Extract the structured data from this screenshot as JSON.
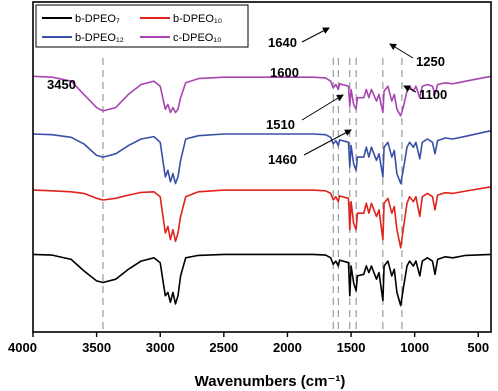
{
  "chart_data": {
    "type": "line",
    "title": "",
    "xlabel": "Wavenumbers (cm⁻¹)",
    "ylabel": "",
    "xlim": [
      4000,
      400
    ],
    "x_reversed": true,
    "ylim": [
      0,
      1
    ],
    "grid": false,
    "legend_position": "top-left",
    "x_ticks": [
      4000,
      3500,
      3000,
      2500,
      2000,
      1500,
      1000,
      500
    ],
    "vlines": [
      3450,
      1640,
      1600,
      1510,
      1460,
      1250,
      1100
    ],
    "annotations": [
      {
        "label": "3450",
        "x": 3450
      },
      {
        "label": "1640",
        "x": 1640
      },
      {
        "label": "1600",
        "x": 1600
      },
      {
        "label": "1510",
        "x": 1510
      },
      {
        "label": "1460",
        "x": 1460
      },
      {
        "label": "1250",
        "x": 1250
      },
      {
        "label": "1100",
        "x": 1100
      }
    ],
    "series": [
      {
        "name": "b-DPEO₇",
        "color": "#000000",
        "points": [
          [
            4000,
            0.235
          ],
          [
            3850,
            0.233
          ],
          [
            3700,
            0.22
          ],
          [
            3600,
            0.185
          ],
          [
            3500,
            0.155
          ],
          [
            3450,
            0.15
          ],
          [
            3350,
            0.16
          ],
          [
            3250,
            0.19
          ],
          [
            3150,
            0.215
          ],
          [
            3050,
            0.225
          ],
          [
            3000,
            0.21
          ],
          [
            2960,
            0.11
          ],
          [
            2940,
            0.12
          ],
          [
            2920,
            0.09
          ],
          [
            2900,
            0.12
          ],
          [
            2880,
            0.085
          ],
          [
            2860,
            0.11
          ],
          [
            2840,
            0.17
          ],
          [
            2800,
            0.225
          ],
          [
            2700,
            0.232
          ],
          [
            2500,
            0.235
          ],
          [
            2000,
            0.235
          ],
          [
            1800,
            0.235
          ],
          [
            1700,
            0.233
          ],
          [
            1660,
            0.225
          ],
          [
            1640,
            0.205
          ],
          [
            1620,
            0.215
          ],
          [
            1600,
            0.2
          ],
          [
            1590,
            0.218
          ],
          [
            1520,
            0.21
          ],
          [
            1510,
            0.11
          ],
          [
            1500,
            0.2
          ],
          [
            1480,
            0.15
          ],
          [
            1460,
            0.125
          ],
          [
            1450,
            0.17
          ],
          [
            1400,
            0.175
          ],
          [
            1380,
            0.2
          ],
          [
            1360,
            0.18
          ],
          [
            1340,
            0.2
          ],
          [
            1300,
            0.16
          ],
          [
            1280,
            0.18
          ],
          [
            1250,
            0.095
          ],
          [
            1240,
            0.2
          ],
          [
            1210,
            0.215
          ],
          [
            1180,
            0.17
          ],
          [
            1160,
            0.19
          ],
          [
            1140,
            0.12
          ],
          [
            1110,
            0.08
          ],
          [
            1090,
            0.13
          ],
          [
            1060,
            0.2
          ],
          [
            1040,
            0.215
          ],
          [
            1010,
            0.2
          ],
          [
            990,
            0.215
          ],
          [
            960,
            0.17
          ],
          [
            940,
            0.215
          ],
          [
            900,
            0.225
          ],
          [
            860,
            0.215
          ],
          [
            840,
            0.175
          ],
          [
            820,
            0.22
          ],
          [
            760,
            0.228
          ],
          [
            700,
            0.225
          ],
          [
            600,
            0.232
          ],
          [
            400,
            0.235
          ]
        ]
      },
      {
        "name": "b-DPEO₁₀",
        "color": "#e0231c",
        "points": [
          [
            4000,
            0.43
          ],
          [
            3850,
            0.428
          ],
          [
            3700,
            0.425
          ],
          [
            3600,
            0.42
          ],
          [
            3500,
            0.405
          ],
          [
            3450,
            0.4
          ],
          [
            3350,
            0.405
          ],
          [
            3250,
            0.415
          ],
          [
            3150,
            0.423
          ],
          [
            3050,
            0.425
          ],
          [
            3000,
            0.41
          ],
          [
            2960,
            0.3
          ],
          [
            2940,
            0.32
          ],
          [
            2920,
            0.28
          ],
          [
            2900,
            0.31
          ],
          [
            2880,
            0.275
          ],
          [
            2860,
            0.3
          ],
          [
            2840,
            0.35
          ],
          [
            2800,
            0.41
          ],
          [
            2700,
            0.425
          ],
          [
            2500,
            0.43
          ],
          [
            2000,
            0.43
          ],
          [
            1800,
            0.43
          ],
          [
            1700,
            0.428
          ],
          [
            1660,
            0.42
          ],
          [
            1640,
            0.4
          ],
          [
            1620,
            0.41
          ],
          [
            1600,
            0.395
          ],
          [
            1590,
            0.412
          ],
          [
            1520,
            0.405
          ],
          [
            1510,
            0.31
          ],
          [
            1500,
            0.395
          ],
          [
            1480,
            0.33
          ],
          [
            1460,
            0.31
          ],
          [
            1450,
            0.36
          ],
          [
            1400,
            0.36
          ],
          [
            1380,
            0.39
          ],
          [
            1360,
            0.36
          ],
          [
            1340,
            0.39
          ],
          [
            1300,
            0.35
          ],
          [
            1280,
            0.37
          ],
          [
            1250,
            0.28
          ],
          [
            1240,
            0.39
          ],
          [
            1210,
            0.405
          ],
          [
            1180,
            0.36
          ],
          [
            1160,
            0.38
          ],
          [
            1140,
            0.31
          ],
          [
            1110,
            0.255
          ],
          [
            1090,
            0.31
          ],
          [
            1060,
            0.39
          ],
          [
            1040,
            0.41
          ],
          [
            1010,
            0.395
          ],
          [
            990,
            0.41
          ],
          [
            960,
            0.35
          ],
          [
            940,
            0.41
          ],
          [
            900,
            0.42
          ],
          [
            860,
            0.41
          ],
          [
            840,
            0.37
          ],
          [
            820,
            0.415
          ],
          [
            760,
            0.422
          ],
          [
            700,
            0.42
          ],
          [
            600,
            0.427
          ],
          [
            400,
            0.44
          ]
        ]
      },
      {
        "name": "b-DPEO₁₂",
        "color": "#3a50a8",
        "points": [
          [
            4000,
            0.6
          ],
          [
            3850,
            0.598
          ],
          [
            3700,
            0.59
          ],
          [
            3600,
            0.57
          ],
          [
            3500,
            0.535
          ],
          [
            3450,
            0.53
          ],
          [
            3350,
            0.54
          ],
          [
            3250,
            0.565
          ],
          [
            3150,
            0.585
          ],
          [
            3050,
            0.592
          ],
          [
            3000,
            0.575
          ],
          [
            2960,
            0.47
          ],
          [
            2940,
            0.49
          ],
          [
            2920,
            0.455
          ],
          [
            2900,
            0.48
          ],
          [
            2880,
            0.45
          ],
          [
            2860,
            0.47
          ],
          [
            2840,
            0.52
          ],
          [
            2800,
            0.585
          ],
          [
            2700,
            0.595
          ],
          [
            2500,
            0.6
          ],
          [
            2000,
            0.6
          ],
          [
            1800,
            0.6
          ],
          [
            1700,
            0.598
          ],
          [
            1660,
            0.59
          ],
          [
            1640,
            0.57
          ],
          [
            1620,
            0.58
          ],
          [
            1600,
            0.565
          ],
          [
            1590,
            0.582
          ],
          [
            1520,
            0.575
          ],
          [
            1510,
            0.5
          ],
          [
            1500,
            0.565
          ],
          [
            1480,
            0.51
          ],
          [
            1460,
            0.49
          ],
          [
            1450,
            0.53
          ],
          [
            1400,
            0.53
          ],
          [
            1380,
            0.56
          ],
          [
            1360,
            0.53
          ],
          [
            1340,
            0.56
          ],
          [
            1300,
            0.52
          ],
          [
            1280,
            0.54
          ],
          [
            1250,
            0.47
          ],
          [
            1240,
            0.56
          ],
          [
            1210,
            0.575
          ],
          [
            1180,
            0.53
          ],
          [
            1160,
            0.55
          ],
          [
            1140,
            0.48
          ],
          [
            1110,
            0.45
          ],
          [
            1090,
            0.49
          ],
          [
            1060,
            0.56
          ],
          [
            1040,
            0.575
          ],
          [
            1010,
            0.56
          ],
          [
            990,
            0.575
          ],
          [
            960,
            0.525
          ],
          [
            940,
            0.575
          ],
          [
            900,
            0.585
          ],
          [
            860,
            0.575
          ],
          [
            840,
            0.54
          ],
          [
            820,
            0.58
          ],
          [
            760,
            0.588
          ],
          [
            700,
            0.585
          ],
          [
            600,
            0.593
          ],
          [
            400,
            0.61
          ]
        ]
      },
      {
        "name": "c-DPEO₁₀",
        "color": "#a845b0",
        "points": [
          [
            4000,
            0.775
          ],
          [
            3850,
            0.772
          ],
          [
            3700,
            0.76
          ],
          [
            3600,
            0.72
          ],
          [
            3500,
            0.68
          ],
          [
            3450,
            0.67
          ],
          [
            3350,
            0.68
          ],
          [
            3250,
            0.72
          ],
          [
            3150,
            0.75
          ],
          [
            3050,
            0.76
          ],
          [
            3000,
            0.745
          ],
          [
            2960,
            0.675
          ],
          [
            2940,
            0.69
          ],
          [
            2920,
            0.665
          ],
          [
            2900,
            0.68
          ],
          [
            2880,
            0.665
          ],
          [
            2860,
            0.675
          ],
          [
            2840,
            0.71
          ],
          [
            2800,
            0.755
          ],
          [
            2700,
            0.768
          ],
          [
            2500,
            0.772
          ],
          [
            2000,
            0.772
          ],
          [
            1800,
            0.772
          ],
          [
            1700,
            0.77
          ],
          [
            1660,
            0.76
          ],
          [
            1640,
            0.74
          ],
          [
            1620,
            0.75
          ],
          [
            1600,
            0.735
          ],
          [
            1590,
            0.752
          ],
          [
            1520,
            0.745
          ],
          [
            1510,
            0.685
          ],
          [
            1500,
            0.735
          ],
          [
            1480,
            0.69
          ],
          [
            1460,
            0.675
          ],
          [
            1450,
            0.71
          ],
          [
            1400,
            0.71
          ],
          [
            1380,
            0.735
          ],
          [
            1360,
            0.71
          ],
          [
            1340,
            0.735
          ],
          [
            1300,
            0.7
          ],
          [
            1280,
            0.72
          ],
          [
            1250,
            0.665
          ],
          [
            1240,
            0.73
          ],
          [
            1210,
            0.745
          ],
          [
            1180,
            0.7
          ],
          [
            1160,
            0.72
          ],
          [
            1140,
            0.675
          ],
          [
            1110,
            0.655
          ],
          [
            1090,
            0.68
          ],
          [
            1060,
            0.73
          ],
          [
            1040,
            0.745
          ],
          [
            1010,
            0.73
          ],
          [
            990,
            0.745
          ],
          [
            960,
            0.71
          ],
          [
            940,
            0.745
          ],
          [
            900,
            0.75
          ],
          [
            860,
            0.745
          ],
          [
            840,
            0.72
          ],
          [
            820,
            0.75
          ],
          [
            760,
            0.755
          ],
          [
            700,
            0.752
          ],
          [
            600,
            0.76
          ],
          [
            400,
            0.775
          ]
        ]
      }
    ]
  }
}
